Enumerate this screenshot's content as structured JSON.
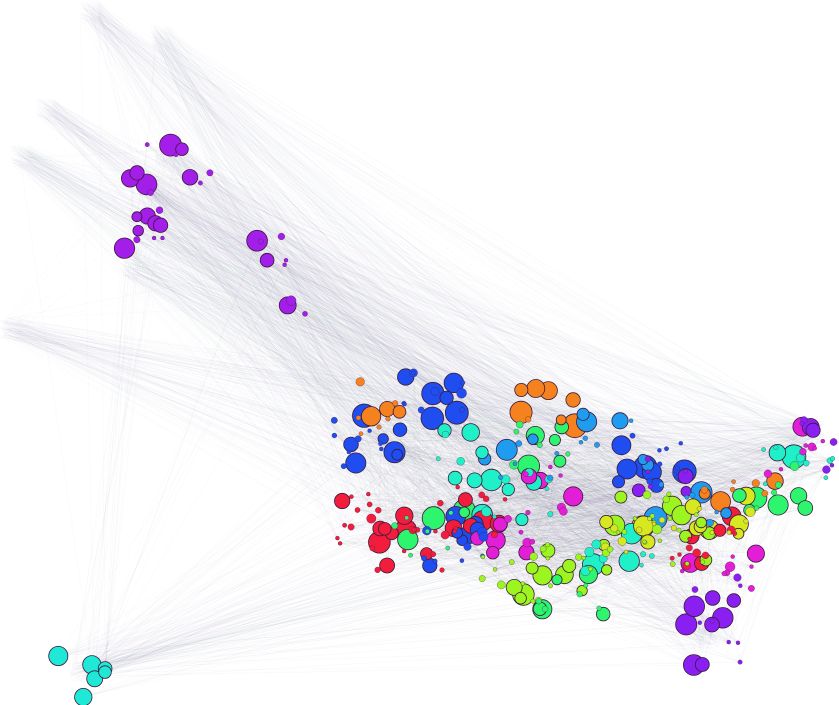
{
  "graph": {
    "background": "#ffffff",
    "edge_opacity": 0.05,
    "node_stroke": "#3a1a3a",
    "clusters": [
      {
        "name": "violet-upper-left",
        "color": "#a31ee8",
        "node_count": 30
      },
      {
        "name": "orange",
        "color": "#f5821f",
        "node_count": 25
      },
      {
        "name": "blue",
        "color": "#1f4df0",
        "node_count": 60
      },
      {
        "name": "red",
        "color": "#f21c3c",
        "node_count": 55
      },
      {
        "name": "bright-green",
        "color": "#2ef56e",
        "node_count": 40
      },
      {
        "name": "lime",
        "color": "#9cf51f",
        "node_count": 55
      },
      {
        "name": "cyan",
        "color": "#1ff0c8",
        "node_count": 40
      },
      {
        "name": "magenta",
        "color": "#e21fd6",
        "node_count": 35
      },
      {
        "name": "purple-lower-right",
        "color": "#8a1ff2",
        "node_count": 30
      },
      {
        "name": "yellow",
        "color": "#d6e81f",
        "node_count": 25
      },
      {
        "name": "teal-lower-left",
        "color": "#1fe8d6",
        "node_count": 6
      },
      {
        "name": "sky",
        "color": "#1f9cf0",
        "node_count": 25
      }
    ]
  }
}
